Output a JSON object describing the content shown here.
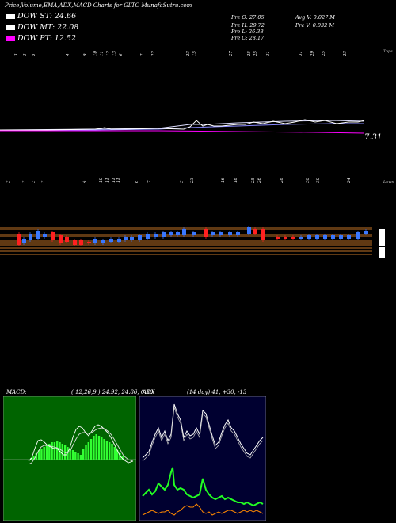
{
  "header": {
    "title": "Price,Volume,EMA,ADX,MACD Charts for GLTO MunafaSutra.com"
  },
  "legend": [
    {
      "label": "DOW ST: 24.66",
      "color": "#ffffff"
    },
    {
      "label": "DOW MT: 22.08",
      "color": "#ffffff"
    },
    {
      "label": "DOW PT: 12.52",
      "color": "#ff00ff"
    }
  ],
  "stats": {
    "open": "Pre   O: 27.05",
    "high": "Pre   H: 29.72",
    "low": "Pre   L: 26.38",
    "close": "Pre   C: 28.17",
    "avg_volume": "Avg V: 0.027  M",
    "prev_volume": "Pre   V: 0.032  M"
  },
  "colors": {
    "price_line": "#ffffff",
    "ema_line": "#8888ff",
    "dow_pt_line": "#ff00ff",
    "up_candle": "#3a78ff",
    "down_candle": "#ff2020",
    "sr_lines": "#ff9933",
    "macd_bg": "#006400",
    "macd_hist": "#33ff33",
    "adx_bg": "#000030",
    "adx_line": "#ffffff",
    "di_plus": "#22ff22",
    "di_minus": "#ff8800"
  },
  "price_panel": {
    "top_label": "Tops",
    "bottom_label": "Lows",
    "last_price": "7.31",
    "top_dates": [
      "3",
      "3",
      "5",
      "4",
      "9",
      "10",
      "11",
      "12",
      "13",
      "6",
      "7",
      "22",
      "23",
      "15",
      "27",
      "25",
      "25",
      "31",
      "31",
      "29",
      "25",
      "23"
    ],
    "low_dates": [
      "3",
      "3",
      "3",
      "3",
      "4",
      "10",
      "11",
      "11",
      "11",
      "6",
      "7",
      "3",
      "23",
      "16",
      "18",
      "25",
      "26",
      "28",
      "30",
      "30",
      "24"
    ]
  },
  "macd": {
    "label": "MACD:",
    "params": "( 12,26,9 ) 24.92, 24.86, 0.36"
  },
  "adx": {
    "label": "ADX",
    "params": "(14  day) 41, +30, -13"
  }
}
